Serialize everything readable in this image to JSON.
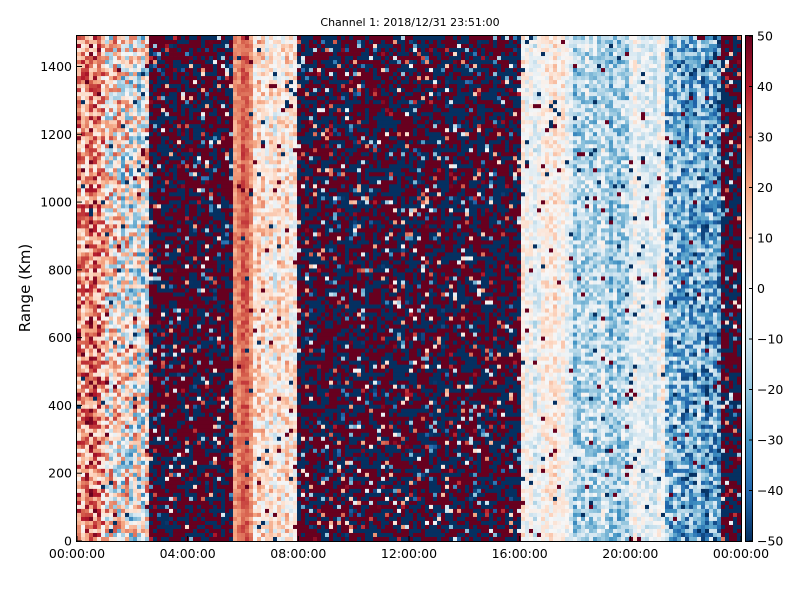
{
  "chart_data": {
    "type": "heatmap",
    "title": "Channel 1: 2018/12/31 23:51:00",
    "xlabel": "",
    "ylabel": "Range (Km)",
    "x_tick_labels": [
      "00:00:00",
      "04:00:00",
      "08:00:00",
      "12:00:00",
      "16:00:00",
      "20:00:00",
      "00:00:00"
    ],
    "xlim": [
      "00:00:00",
      "24:00:00"
    ],
    "y_ticks": [
      0,
      200,
      400,
      600,
      800,
      1000,
      1200,
      1400
    ],
    "ylim": [
      0,
      1490
    ],
    "colorbar": {
      "ticks": [
        50,
        40,
        30,
        20,
        10,
        0,
        -10,
        -20,
        -30,
        -40,
        -50
      ],
      "tick_labels": [
        "50",
        "40",
        "30",
        "20",
        "10",
        "0",
        "−10",
        "−20",
        "−30",
        "−40",
        "−50"
      ],
      "range": [
        -50,
        50
      ],
      "colormap": "RdBu_r"
    },
    "grid": false,
    "value_profile_by_hour": [
      {
        "hour_from": 0.0,
        "hour_to": 1.0,
        "mean_value": 22,
        "noise": 22
      },
      {
        "hour_from": 1.0,
        "hour_to": 2.6,
        "mean_value": 0,
        "noise": 30
      },
      {
        "hour_from": 2.6,
        "hour_to": 5.6,
        "mean_value": 20,
        "noise": 50
      },
      {
        "hour_from": 5.6,
        "hour_to": 6.4,
        "mean_value": 26,
        "noise": 6
      },
      {
        "hour_from": 6.4,
        "hour_to": 8.0,
        "mean_value": 6,
        "noise": 15
      },
      {
        "hour_from": 8.0,
        "hour_to": 16.0,
        "mean_value": 0,
        "noise": 70
      },
      {
        "hour_from": 16.0,
        "hour_to": 18.0,
        "mean_value": 0,
        "noise": 10
      },
      {
        "hour_from": 18.0,
        "hour_to": 20.0,
        "mean_value": -15,
        "noise": 15
      },
      {
        "hour_from": 20.0,
        "hour_to": 21.2,
        "mean_value": -3,
        "noise": 10
      },
      {
        "hour_from": 21.2,
        "hour_to": 23.3,
        "mean_value": -25,
        "noise": 20
      },
      {
        "hour_from": 23.3,
        "hour_to": 24.0,
        "mean_value": 0,
        "noise": 70
      }
    ]
  }
}
